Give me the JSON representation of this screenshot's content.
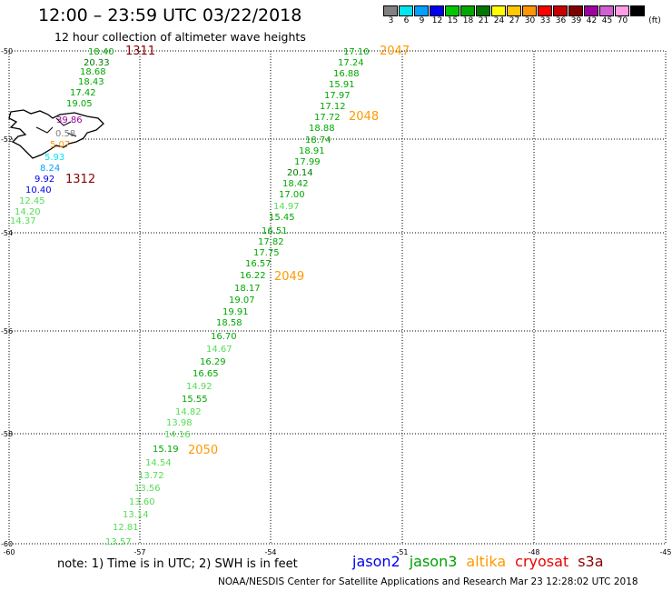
{
  "title": "12:00 – 23:59 UTC 03/22/2018",
  "subtitle": "12 hour collection of altimeter wave heights",
  "legend": {
    "unit": "(ft)",
    "bins": [
      {
        "label": "3",
        "color": "#808080"
      },
      {
        "label": "6",
        "color": "#00e5ee"
      },
      {
        "label": "9",
        "color": "#00a0ff"
      },
      {
        "label": "12",
        "color": "#0000ee"
      },
      {
        "label": "15",
        "color": "#00c800"
      },
      {
        "label": "18",
        "color": "#00a800"
      },
      {
        "label": "21",
        "color": "#007800"
      },
      {
        "label": "24",
        "color": "#ffff00"
      },
      {
        "label": "27",
        "color": "#ffc800"
      },
      {
        "label": "30",
        "color": "#ff9600"
      },
      {
        "label": "33",
        "color": "#ff0000"
      },
      {
        "label": "36",
        "color": "#c80000"
      },
      {
        "label": "39",
        "color": "#800000"
      },
      {
        "label": "42",
        "color": "#a000a0"
      },
      {
        "label": "45",
        "color": "#d060d0"
      },
      {
        "label": "70",
        "color": "#ff9ee6"
      },
      {
        "label": "",
        "color": "#000000"
      }
    ]
  },
  "map": {
    "lat_labels": [
      "-50",
      "-52",
      "-54",
      "-56",
      "-58",
      "-60"
    ],
    "lon_labels": [
      "-60",
      "-57",
      "-54",
      "-51",
      "-48",
      "-45"
    ],
    "pass_labels": [
      {
        "text": "1311",
        "color": "#8b0000"
      },
      {
        "text": "1312",
        "color": "#8b0000"
      },
      {
        "text": "2047",
        "color": "#ff9900"
      },
      {
        "text": "2048",
        "color": "#ff9900"
      },
      {
        "text": "2049",
        "color": "#ff9900"
      },
      {
        "text": "2050",
        "color": "#ff9900"
      }
    ],
    "track_west": [
      {
        "v": "18.40",
        "c": "#00a800"
      },
      {
        "v": "20.33",
        "c": "#007800"
      },
      {
        "v": "18.68",
        "c": "#00a800"
      },
      {
        "v": "18.43",
        "c": "#00a800"
      },
      {
        "v": "17.42",
        "c": "#00a800"
      },
      {
        "v": "19.05",
        "c": "#00a800"
      },
      {
        "v": "39.86",
        "c": "#a000a0"
      },
      {
        "v": "0.58",
        "c": "#808080"
      },
      {
        "v": "5.07",
        "c": "#ff9600"
      },
      {
        "v": "5.93",
        "c": "#00e5ee"
      },
      {
        "v": "8.24",
        "c": "#00a0ff"
      },
      {
        "v": "9.92",
        "c": "#0000ee"
      },
      {
        "v": "10.40",
        "c": "#0000ee"
      },
      {
        "v": "12.45",
        "c": "#55dd55"
      },
      {
        "v": "14.20",
        "c": "#55dd55"
      },
      {
        "v": "14.37",
        "c": "#55dd55"
      }
    ],
    "track_main": [
      {
        "v": "17.10",
        "c": "#00a800"
      },
      {
        "v": "17.24",
        "c": "#00a800"
      },
      {
        "v": "16.88",
        "c": "#00a800"
      },
      {
        "v": "15.91",
        "c": "#00a800"
      },
      {
        "v": "17.97",
        "c": "#00a800"
      },
      {
        "v": "17.12",
        "c": "#00a800"
      },
      {
        "v": "17.72",
        "c": "#00a800"
      },
      {
        "v": "18.88",
        "c": "#00a800"
      },
      {
        "v": "18.74",
        "c": "#00a800"
      },
      {
        "v": "18.91",
        "c": "#00a800"
      },
      {
        "v": "17.99",
        "c": "#00a800"
      },
      {
        "v": "20.14",
        "c": "#007800"
      },
      {
        "v": "18.42",
        "c": "#00a800"
      },
      {
        "v": "17.00",
        "c": "#00a800"
      },
      {
        "v": "14.97",
        "c": "#55dd55"
      },
      {
        "v": "15.45",
        "c": "#00a800"
      },
      {
        "v": "16.51",
        "c": "#00a800"
      },
      {
        "v": "17.82",
        "c": "#00a800"
      },
      {
        "v": "17.75",
        "c": "#00a800"
      },
      {
        "v": "16.57",
        "c": "#00a800"
      },
      {
        "v": "16.22",
        "c": "#00a800"
      },
      {
        "v": "18.17",
        "c": "#00a800"
      },
      {
        "v": "19.07",
        "c": "#00a800"
      },
      {
        "v": "19.91",
        "c": "#00a800"
      },
      {
        "v": "18.58",
        "c": "#00a800"
      },
      {
        "v": "16.70",
        "c": "#00a800"
      },
      {
        "v": "14.67",
        "c": "#55dd55"
      },
      {
        "v": "16.29",
        "c": "#00a800"
      },
      {
        "v": "16.65",
        "c": "#00a800"
      },
      {
        "v": "14.92",
        "c": "#55dd55"
      },
      {
        "v": "15.55",
        "c": "#00a800"
      },
      {
        "v": "14.82",
        "c": "#55dd55"
      },
      {
        "v": "13.98",
        "c": "#55dd55"
      },
      {
        "v": "14.16",
        "c": "#55dd55"
      },
      {
        "v": "15.19",
        "c": "#00a800"
      },
      {
        "v": "14.54",
        "c": "#55dd55"
      },
      {
        "v": "13.72",
        "c": "#55dd55"
      },
      {
        "v": "13.56",
        "c": "#55dd55"
      },
      {
        "v": "13.60",
        "c": "#55dd55"
      },
      {
        "v": "13.14",
        "c": "#55dd55"
      },
      {
        "v": "12.81",
        "c": "#55dd55"
      },
      {
        "v": "13.57",
        "c": "#55dd55"
      }
    ]
  },
  "note": "note: 1) Time is in UTC; 2) SWH is in feet",
  "missions": [
    {
      "name": "jason2",
      "color": "#0000ee"
    },
    {
      "name": "jason3",
      "color": "#00a000"
    },
    {
      "name": "altika",
      "color": "#ff9900"
    },
    {
      "name": "cryosat",
      "color": "#ee0000"
    },
    {
      "name": "s3a",
      "color": "#8b0000"
    }
  ],
  "footer": "NOAA/NESDIS Center for Satellite Applications and Research    Mar 23 12:28:02 UTC 2018"
}
